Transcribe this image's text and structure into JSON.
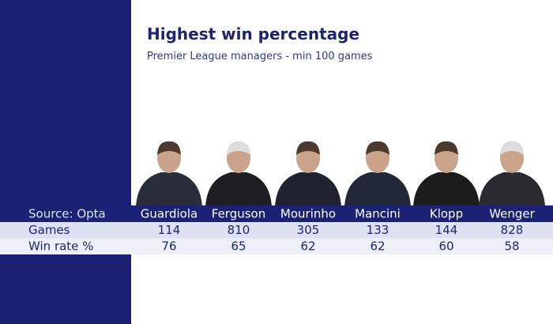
{
  "title": "Highest win percentage",
  "subtitle": "Premier League managers - min 100 games",
  "table": {
    "header": [
      "Source: Opta",
      "Guardiola",
      "Ferguson",
      "Mourinho",
      "Mancini",
      "Klopp",
      "Wenger"
    ],
    "rows": [
      [
        "Games",
        114,
        810,
        305,
        133,
        144,
        828
      ],
      [
        "Win rate %",
        76,
        65,
        62,
        62,
        60,
        58
      ]
    ]
  }
}
